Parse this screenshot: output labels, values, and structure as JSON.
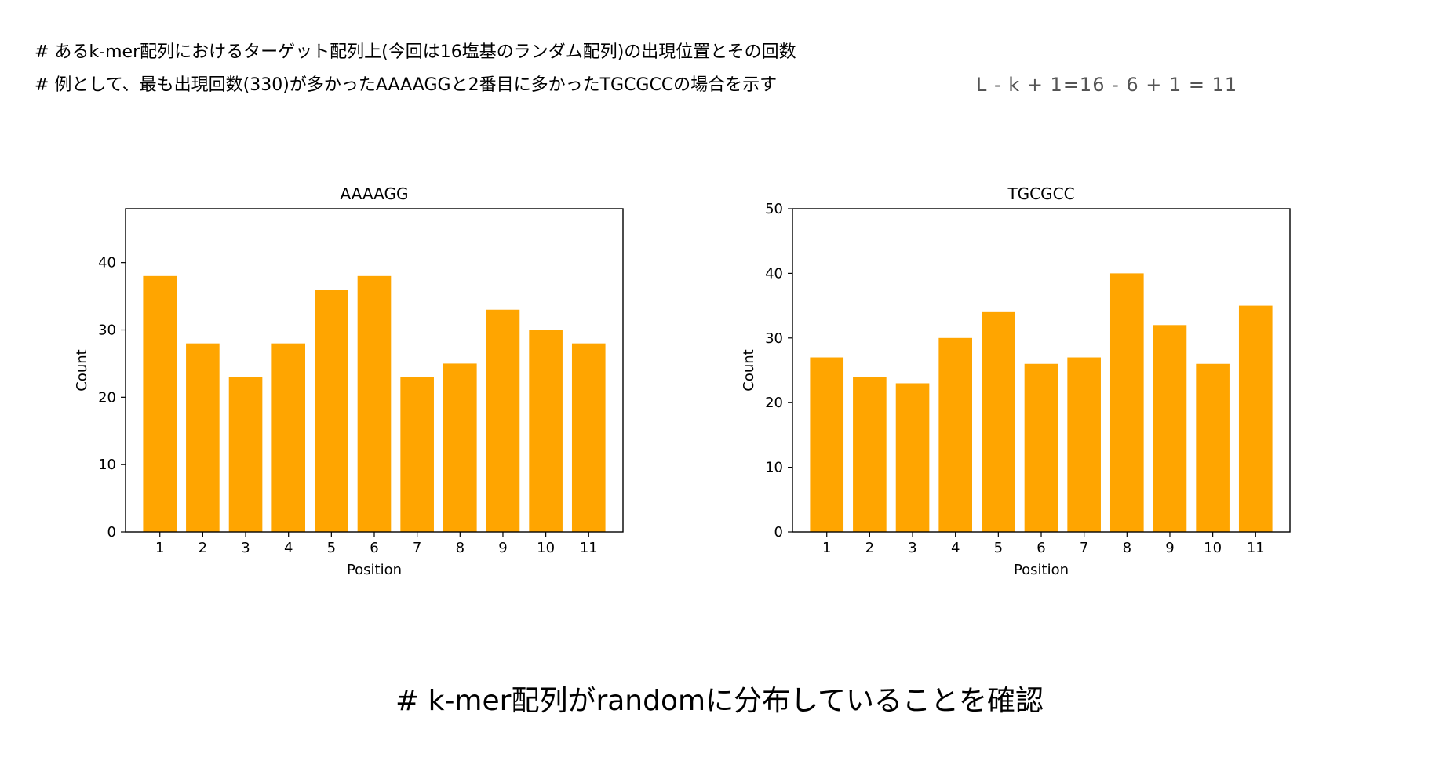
{
  "notes": {
    "line1": "# あるk-mer配列におけるターゲット配列上(今回は16塩基のランダム配列)の出現位置とその回数",
    "line2": "# 例として、最も出現回数(330)が多かったAAAAGGと2番目に多かったTGCGCCの場合を示す",
    "formula": "L - k + 1=16 - 6 + 1 = 11"
  },
  "conclusion": "# k-mer配列がrandomに分布していることを確認",
  "colors": {
    "bar": "#FFA500",
    "axis": "#000000"
  },
  "chart_data": [
    {
      "type": "bar",
      "title": "AAAAGG",
      "xlabel": "Position",
      "ylabel": "Count",
      "categories": [
        "1",
        "2",
        "3",
        "4",
        "5",
        "6",
        "7",
        "8",
        "9",
        "10",
        "11"
      ],
      "values": [
        38,
        28,
        23,
        28,
        36,
        38,
        23,
        25,
        33,
        30,
        28
      ],
      "ylim": [
        0,
        48
      ],
      "yticks": [
        0,
        10,
        20,
        30,
        40
      ],
      "grid": false
    },
    {
      "type": "bar",
      "title": "TGCGCC",
      "xlabel": "Position",
      "ylabel": "Count",
      "categories": [
        "1",
        "2",
        "3",
        "4",
        "5",
        "6",
        "7",
        "8",
        "9",
        "10",
        "11"
      ],
      "values": [
        27,
        24,
        23,
        30,
        34,
        26,
        27,
        40,
        32,
        26,
        35
      ],
      "ylim": [
        0,
        50
      ],
      "yticks": [
        0,
        10,
        20,
        30,
        40,
        50
      ],
      "grid": false
    }
  ]
}
